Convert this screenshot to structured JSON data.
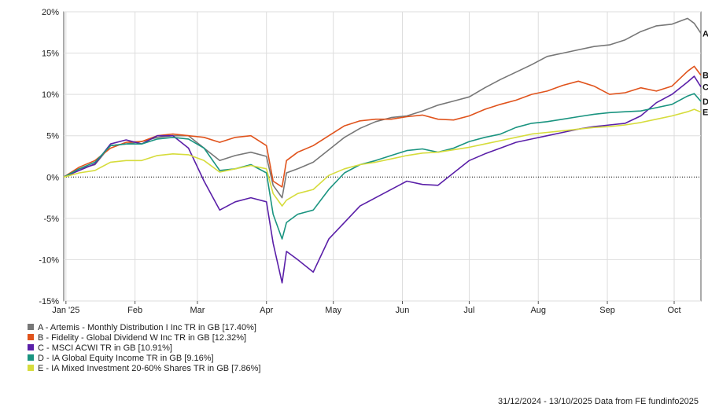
{
  "chart_data": {
    "type": "line",
    "title": "",
    "xlabel": "",
    "ylabel": "",
    "ylim": [
      -15,
      20
    ],
    "y_ticks": [
      20,
      15,
      10,
      5,
      0,
      -5,
      -10,
      -15
    ],
    "y_tick_labels": [
      "20%",
      "15%",
      "10%",
      "5%",
      "0%",
      "-5%",
      "-10%",
      "-15%"
    ],
    "x_range": [
      "2024-12-31",
      "2025-10-13"
    ],
    "x_ticks": [
      {
        "date": "2025-01-01",
        "label": "Jan '25"
      },
      {
        "date": "2025-02-01",
        "label": "Feb"
      },
      {
        "date": "2025-03-01",
        "label": "Mar"
      },
      {
        "date": "2025-04-01",
        "label": "Apr"
      },
      {
        "date": "2025-05-01",
        "label": "May"
      },
      {
        "date": "2025-06-01",
        "label": "Jun"
      },
      {
        "date": "2025-07-01",
        "label": "Jul"
      },
      {
        "date": "2025-08-01",
        "label": "Aug"
      },
      {
        "date": "2025-09-01",
        "label": "Sep"
      },
      {
        "date": "2025-10-01",
        "label": "Oct"
      }
    ],
    "grid": true,
    "legend_position": "bottom-left",
    "series": [
      {
        "key": "A",
        "name": "A - Artemis - Monthly Distribution I Inc TR in GB [17.40%]",
        "color": "#777777",
        "points": [
          [
            "2024-12-31",
            0
          ],
          [
            "2025-01-07",
            1.0
          ],
          [
            "2025-01-14",
            1.5
          ],
          [
            "2025-01-21",
            3.8
          ],
          [
            "2025-01-28",
            4.0
          ],
          [
            "2025-02-04",
            4.3
          ],
          [
            "2025-02-11",
            4.8
          ],
          [
            "2025-02-18",
            5.0
          ],
          [
            "2025-02-25",
            5.0
          ],
          [
            "2025-03-04",
            3.5
          ],
          [
            "2025-03-11",
            2.0
          ],
          [
            "2025-03-18",
            2.6
          ],
          [
            "2025-03-25",
            3.0
          ],
          [
            "2025-04-01",
            2.5
          ],
          [
            "2025-04-04",
            -1.0
          ],
          [
            "2025-04-08",
            -2.5
          ],
          [
            "2025-04-10",
            0.5
          ],
          [
            "2025-04-15",
            1.0
          ],
          [
            "2025-04-22",
            1.8
          ],
          [
            "2025-04-29",
            3.3
          ],
          [
            "2025-05-06",
            4.8
          ],
          [
            "2025-05-13",
            5.9
          ],
          [
            "2025-05-20",
            6.7
          ],
          [
            "2025-05-27",
            7.2
          ],
          [
            "2025-06-03",
            7.4
          ],
          [
            "2025-06-10",
            8.0
          ],
          [
            "2025-06-17",
            8.7
          ],
          [
            "2025-06-24",
            9.2
          ],
          [
            "2025-07-01",
            9.7
          ],
          [
            "2025-07-08",
            10.8
          ],
          [
            "2025-07-15",
            11.8
          ],
          [
            "2025-07-22",
            12.7
          ],
          [
            "2025-07-29",
            13.6
          ],
          [
            "2025-08-05",
            14.6
          ],
          [
            "2025-08-12",
            15.0
          ],
          [
            "2025-08-19",
            15.4
          ],
          [
            "2025-08-26",
            15.8
          ],
          [
            "2025-09-02",
            16.0
          ],
          [
            "2025-09-09",
            16.6
          ],
          [
            "2025-09-16",
            17.6
          ],
          [
            "2025-09-23",
            18.3
          ],
          [
            "2025-09-30",
            18.5
          ],
          [
            "2025-10-07",
            19.2
          ],
          [
            "2025-10-10",
            18.6
          ],
          [
            "2025-10-13",
            17.4
          ]
        ]
      },
      {
        "key": "B",
        "name": "B - Fidelity - Global Dividend W Inc TR in GB [12.32%]",
        "color": "#e0531c",
        "points": [
          [
            "2024-12-31",
            0
          ],
          [
            "2025-01-07",
            1.2
          ],
          [
            "2025-01-14",
            2.0
          ],
          [
            "2025-01-21",
            3.5
          ],
          [
            "2025-01-28",
            4.2
          ],
          [
            "2025-02-04",
            4.3
          ],
          [
            "2025-02-11",
            5.0
          ],
          [
            "2025-02-18",
            5.2
          ],
          [
            "2025-02-25",
            5.0
          ],
          [
            "2025-03-04",
            4.8
          ],
          [
            "2025-03-11",
            4.2
          ],
          [
            "2025-03-18",
            4.8
          ],
          [
            "2025-03-25",
            5.0
          ],
          [
            "2025-04-01",
            3.8
          ],
          [
            "2025-04-04",
            -0.5
          ],
          [
            "2025-04-08",
            -1.2
          ],
          [
            "2025-04-10",
            2.0
          ],
          [
            "2025-04-15",
            3.0
          ],
          [
            "2025-04-22",
            3.8
          ],
          [
            "2025-04-29",
            5.0
          ],
          [
            "2025-05-06",
            6.2
          ],
          [
            "2025-05-13",
            6.8
          ],
          [
            "2025-05-20",
            7.0
          ],
          [
            "2025-05-27",
            7.0
          ],
          [
            "2025-06-03",
            7.3
          ],
          [
            "2025-06-10",
            7.5
          ],
          [
            "2025-06-17",
            7.0
          ],
          [
            "2025-06-24",
            6.9
          ],
          [
            "2025-07-01",
            7.4
          ],
          [
            "2025-07-08",
            8.2
          ],
          [
            "2025-07-15",
            8.8
          ],
          [
            "2025-07-22",
            9.3
          ],
          [
            "2025-07-29",
            10.0
          ],
          [
            "2025-08-05",
            10.4
          ],
          [
            "2025-08-12",
            11.1
          ],
          [
            "2025-08-19",
            11.6
          ],
          [
            "2025-08-26",
            11.0
          ],
          [
            "2025-09-02",
            10.0
          ],
          [
            "2025-09-09",
            10.2
          ],
          [
            "2025-09-16",
            10.8
          ],
          [
            "2025-09-23",
            10.4
          ],
          [
            "2025-09-30",
            11.0
          ],
          [
            "2025-10-07",
            12.8
          ],
          [
            "2025-10-10",
            13.4
          ],
          [
            "2025-10-13",
            12.32
          ]
        ]
      },
      {
        "key": "C",
        "name": "C - MSCI ACWI TR in GB [10.91%]",
        "color": "#5a1fa8",
        "points": [
          [
            "2024-12-31",
            0
          ],
          [
            "2025-01-07",
            0.8
          ],
          [
            "2025-01-14",
            1.6
          ],
          [
            "2025-01-21",
            4.0
          ],
          [
            "2025-01-28",
            4.5
          ],
          [
            "2025-02-04",
            4.0
          ],
          [
            "2025-02-11",
            5.0
          ],
          [
            "2025-02-18",
            5.0
          ],
          [
            "2025-02-25",
            3.5
          ],
          [
            "2025-03-04",
            -0.5
          ],
          [
            "2025-03-11",
            -4.0
          ],
          [
            "2025-03-18",
            -3.0
          ],
          [
            "2025-03-25",
            -2.5
          ],
          [
            "2025-04-01",
            -3.0
          ],
          [
            "2025-04-04",
            -8.0
          ],
          [
            "2025-04-08",
            -12.8
          ],
          [
            "2025-04-10",
            -9.0
          ],
          [
            "2025-04-15",
            -10.0
          ],
          [
            "2025-04-22",
            -11.5
          ],
          [
            "2025-04-29",
            -7.5
          ],
          [
            "2025-05-06",
            -5.5
          ],
          [
            "2025-05-13",
            -3.5
          ],
          [
            "2025-05-20",
            -2.5
          ],
          [
            "2025-05-27",
            -1.5
          ],
          [
            "2025-06-03",
            -0.5
          ],
          [
            "2025-06-10",
            -0.9
          ],
          [
            "2025-06-17",
            -1.0
          ],
          [
            "2025-06-24",
            0.5
          ],
          [
            "2025-07-01",
            2.0
          ],
          [
            "2025-07-08",
            2.8
          ],
          [
            "2025-07-15",
            3.5
          ],
          [
            "2025-07-22",
            4.2
          ],
          [
            "2025-07-29",
            4.6
          ],
          [
            "2025-08-05",
            5.0
          ],
          [
            "2025-08-12",
            5.4
          ],
          [
            "2025-08-19",
            5.8
          ],
          [
            "2025-08-26",
            6.1
          ],
          [
            "2025-09-02",
            6.3
          ],
          [
            "2025-09-09",
            6.5
          ],
          [
            "2025-09-16",
            7.4
          ],
          [
            "2025-09-23",
            9.0
          ],
          [
            "2025-09-30",
            10.0
          ],
          [
            "2025-10-07",
            11.5
          ],
          [
            "2025-10-10",
            12.2
          ],
          [
            "2025-10-13",
            10.91
          ]
        ]
      },
      {
        "key": "D",
        "name": "D - IA Global Equity Income TR in GB [9.16%]",
        "color": "#1a9480",
        "points": [
          [
            "2024-12-31",
            0
          ],
          [
            "2025-01-07",
            1.0
          ],
          [
            "2025-01-14",
            1.8
          ],
          [
            "2025-01-21",
            3.8
          ],
          [
            "2025-01-28",
            4.0
          ],
          [
            "2025-02-04",
            4.0
          ],
          [
            "2025-02-11",
            4.6
          ],
          [
            "2025-02-18",
            4.8
          ],
          [
            "2025-02-25",
            4.6
          ],
          [
            "2025-03-04",
            3.5
          ],
          [
            "2025-03-11",
            0.8
          ],
          [
            "2025-03-18",
            1.0
          ],
          [
            "2025-03-25",
            1.5
          ],
          [
            "2025-04-01",
            0.5
          ],
          [
            "2025-04-04",
            -4.5
          ],
          [
            "2025-04-08",
            -7.5
          ],
          [
            "2025-04-10",
            -5.5
          ],
          [
            "2025-04-15",
            -4.5
          ],
          [
            "2025-04-22",
            -4.0
          ],
          [
            "2025-04-29",
            -1.5
          ],
          [
            "2025-05-06",
            0.5
          ],
          [
            "2025-05-13",
            1.5
          ],
          [
            "2025-05-20",
            2.0
          ],
          [
            "2025-05-27",
            2.6
          ],
          [
            "2025-06-03",
            3.2
          ],
          [
            "2025-06-10",
            3.4
          ],
          [
            "2025-06-17",
            3.0
          ],
          [
            "2025-06-24",
            3.5
          ],
          [
            "2025-07-01",
            4.3
          ],
          [
            "2025-07-08",
            4.8
          ],
          [
            "2025-07-15",
            5.2
          ],
          [
            "2025-07-22",
            6.0
          ],
          [
            "2025-07-29",
            6.5
          ],
          [
            "2025-08-05",
            6.7
          ],
          [
            "2025-08-12",
            7.0
          ],
          [
            "2025-08-19",
            7.3
          ],
          [
            "2025-08-26",
            7.6
          ],
          [
            "2025-09-02",
            7.8
          ],
          [
            "2025-09-09",
            7.9
          ],
          [
            "2025-09-16",
            8.0
          ],
          [
            "2025-09-23",
            8.4
          ],
          [
            "2025-09-30",
            8.8
          ],
          [
            "2025-10-07",
            9.8
          ],
          [
            "2025-10-10",
            10.1
          ],
          [
            "2025-10-13",
            9.16
          ]
        ]
      },
      {
        "key": "E",
        "name": "E - IA Mixed Investment 20-60% Shares TR in GB [7.86%]",
        "color": "#d6dc3c",
        "points": [
          [
            "2024-12-31",
            0
          ],
          [
            "2025-01-07",
            0.5
          ],
          [
            "2025-01-14",
            0.8
          ],
          [
            "2025-01-21",
            1.8
          ],
          [
            "2025-01-28",
            2.0
          ],
          [
            "2025-02-04",
            2.0
          ],
          [
            "2025-02-11",
            2.6
          ],
          [
            "2025-02-18",
            2.8
          ],
          [
            "2025-02-25",
            2.7
          ],
          [
            "2025-03-04",
            2.0
          ],
          [
            "2025-03-11",
            0.6
          ],
          [
            "2025-03-18",
            1.0
          ],
          [
            "2025-03-25",
            1.4
          ],
          [
            "2025-04-01",
            1.0
          ],
          [
            "2025-04-04",
            -2.0
          ],
          [
            "2025-04-08",
            -3.5
          ],
          [
            "2025-04-10",
            -2.8
          ],
          [
            "2025-04-15",
            -2.0
          ],
          [
            "2025-04-22",
            -1.5
          ],
          [
            "2025-04-29",
            0.2
          ],
          [
            "2025-05-06",
            1.0
          ],
          [
            "2025-05-13",
            1.5
          ],
          [
            "2025-05-20",
            1.8
          ],
          [
            "2025-05-27",
            2.2
          ],
          [
            "2025-06-03",
            2.6
          ],
          [
            "2025-06-10",
            2.9
          ],
          [
            "2025-06-17",
            3.0
          ],
          [
            "2025-06-24",
            3.3
          ],
          [
            "2025-07-01",
            3.6
          ],
          [
            "2025-07-08",
            4.0
          ],
          [
            "2025-07-15",
            4.4
          ],
          [
            "2025-07-22",
            4.8
          ],
          [
            "2025-07-29",
            5.2
          ],
          [
            "2025-08-05",
            5.4
          ],
          [
            "2025-08-12",
            5.6
          ],
          [
            "2025-08-19",
            5.8
          ],
          [
            "2025-08-26",
            6.0
          ],
          [
            "2025-09-02",
            6.1
          ],
          [
            "2025-09-09",
            6.3
          ],
          [
            "2025-09-16",
            6.6
          ],
          [
            "2025-09-23",
            7.0
          ],
          [
            "2025-09-30",
            7.4
          ],
          [
            "2025-10-07",
            7.9
          ],
          [
            "2025-10-10",
            8.2
          ],
          [
            "2025-10-13",
            7.86
          ]
        ]
      }
    ],
    "footer": "31/12/2024 - 13/10/2025 Data from FE fundinfo2025"
  }
}
